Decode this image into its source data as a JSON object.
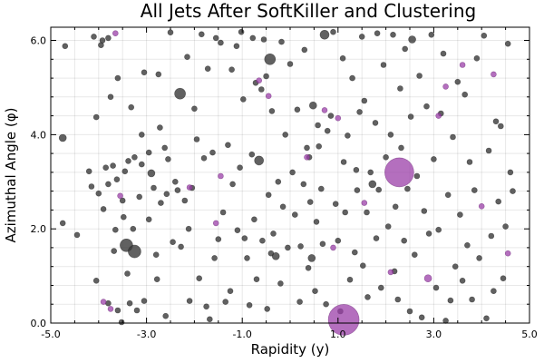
{
  "chart_data": {
    "type": "scatter",
    "title": "All Jets After SoftKiller and Clustering",
    "xlabel": "Rapidity (y)",
    "ylabel": "Azimuthal Angle (φ)",
    "xlim": [
      -5.0,
      5.0
    ],
    "ylim": [
      0.0,
      6.28
    ],
    "xticks": [
      -5.0,
      -3.0,
      -1.0,
      1.0,
      3.0,
      5.0
    ],
    "xtick_labels": [
      "-5.0",
      "-3.0",
      "-1.0",
      "1.0",
      "3.0",
      "5.0"
    ],
    "yticks": [
      0.0,
      2.0,
      4.0,
      6.0
    ],
    "ytick_labels": [
      "0.0",
      "2.0",
      "4.0",
      "6.0"
    ],
    "grid": true,
    "legend": "none",
    "colors": {
      "dark": "#3a3a3a",
      "purple": "#9b3fa8"
    },
    "series": [
      {
        "color_key": "dark",
        "points": [
          [
            -4.75,
            3.93,
            4
          ],
          [
            -4.75,
            2.12,
            3
          ],
          [
            -4.7,
            5.88,
            3
          ],
          [
            -4.45,
            1.87,
            3
          ],
          [
            -4.2,
            3.22,
            3
          ],
          [
            -4.15,
            2.9,
            3
          ],
          [
            -4.1,
            6.08,
            3
          ],
          [
            -4.05,
            4.37,
            3
          ],
          [
            -4.05,
            0.9,
            3
          ],
          [
            -4.0,
            2.75,
            3
          ],
          [
            -3.95,
            5.9,
            3
          ],
          [
            -3.92,
            6.0,
            3
          ],
          [
            -3.9,
            2.42,
            3
          ],
          [
            -3.85,
            3.3,
            3
          ],
          [
            -3.8,
            6.05,
            3
          ],
          [
            -3.8,
            2.95,
            3
          ],
          [
            -3.8,
            0.42,
            3
          ],
          [
            -3.75,
            4.8,
            3
          ],
          [
            -3.7,
            3.34,
            3
          ],
          [
            -3.68,
            1.53,
            3
          ],
          [
            -3.65,
            1.98,
            3
          ],
          [
            -3.62,
            3.05,
            3
          ],
          [
            -3.6,
            5.2,
            3
          ],
          [
            -3.6,
            0.27,
            3
          ],
          [
            -3.52,
            0.02,
            3
          ],
          [
            -3.5,
            2.6,
            3
          ],
          [
            -3.48,
            2.25,
            3
          ],
          [
            -3.45,
            3.22,
            3
          ],
          [
            -3.42,
            1.65,
            7
          ],
          [
            -3.4,
            1.05,
            3
          ],
          [
            -3.38,
            3.44,
            3
          ],
          [
            -3.35,
            0.42,
            3
          ],
          [
            -3.32,
            4.58,
            3
          ],
          [
            -3.28,
            2.0,
            3
          ],
          [
            -3.25,
            1.52,
            7
          ],
          [
            -3.25,
            3.52,
            3
          ],
          [
            -3.2,
            0.27,
            3
          ],
          [
            -3.15,
            2.68,
            3
          ],
          [
            -3.1,
            4.0,
            3
          ],
          [
            -3.1,
            3.37,
            3
          ],
          [
            -3.05,
            0.47,
            3
          ],
          [
            -3.05,
            5.32,
            3
          ],
          [
            -2.95,
            2.2,
            3
          ],
          [
            -2.95,
            3.62,
            3
          ],
          [
            -2.9,
            3.18,
            4
          ],
          [
            -2.85,
            2.87,
            3
          ],
          [
            -2.8,
            1.45,
            3
          ],
          [
            -2.78,
            0.93,
            3
          ],
          [
            -2.75,
            5.28,
            3
          ],
          [
            -2.72,
            4.15,
            3
          ],
          [
            -2.7,
            2.55,
            3
          ],
          [
            -2.62,
            3.72,
            3
          ],
          [
            -2.6,
            0.15,
            3
          ],
          [
            -2.58,
            2.74,
            3
          ],
          [
            -2.55,
            3.48,
            3
          ],
          [
            -2.5,
            6.17,
            3
          ],
          [
            -2.45,
            1.72,
            3
          ],
          [
            -2.4,
            3.0,
            3
          ],
          [
            -2.35,
            2.82,
            3
          ],
          [
            -2.3,
            4.87,
            6
          ],
          [
            -2.28,
            1.62,
            3
          ],
          [
            -2.2,
            2.6,
            3
          ],
          [
            -2.15,
            5.65,
            3
          ],
          [
            -2.12,
            2.0,
            3
          ],
          [
            -2.1,
            0.47,
            3
          ],
          [
            -2.05,
            2.87,
            3
          ],
          [
            -2.0,
            4.55,
            3
          ],
          [
            -1.95,
            3.9,
            3
          ],
          [
            -1.9,
            0.95,
            3
          ],
          [
            -1.85,
            6.13,
            3
          ],
          [
            -1.8,
            3.5,
            3
          ],
          [
            -1.75,
            0.35,
            3
          ],
          [
            -1.72,
            5.4,
            3
          ],
          [
            -1.68,
            0.08,
            3
          ],
          [
            -1.62,
            3.62,
            3
          ],
          [
            -1.58,
            1.38,
            3
          ],
          [
            -1.55,
            6.05,
            3
          ],
          [
            -1.5,
            1.78,
            3
          ],
          [
            -1.45,
            5.95,
            3
          ],
          [
            -1.4,
            2.35,
            3
          ],
          [
            -1.35,
            0.45,
            3
          ],
          [
            -1.3,
            3.78,
            3
          ],
          [
            -1.25,
            0.68,
            3
          ],
          [
            -1.22,
            5.38,
            3
          ],
          [
            -1.2,
            2.95,
            3
          ],
          [
            -1.12,
            5.88,
            3
          ],
          [
            -1.1,
            1.97,
            3
          ],
          [
            -1.05,
            3.3,
            3
          ],
          [
            -1.02,
            6.18,
            3
          ],
          [
            -0.98,
            4.75,
            3
          ],
          [
            -0.95,
            1.8,
            3
          ],
          [
            -0.9,
            1.38,
            3
          ],
          [
            -0.85,
            0.38,
            3
          ],
          [
            -0.8,
            3.58,
            3
          ],
          [
            -0.78,
            6.05,
            3
          ],
          [
            -0.75,
            2.2,
            3
          ],
          [
            -0.72,
            5.1,
            3
          ],
          [
            -0.7,
            0.93,
            3
          ],
          [
            -0.65,
            3.45,
            5
          ],
          [
            -0.6,
            4.96,
            3
          ],
          [
            -0.58,
            1.75,
            3
          ],
          [
            -0.55,
            6.02,
            3
          ],
          [
            -0.5,
            5.24,
            3
          ],
          [
            -0.48,
            0.3,
            3
          ],
          [
            -0.45,
            2.72,
            3
          ],
          [
            -0.42,
            5.6,
            6
          ],
          [
            -0.4,
            1.48,
            3
          ],
          [
            -0.38,
            4.5,
            3
          ],
          [
            -0.35,
            1.9,
            3
          ],
          [
            -0.3,
            1.42,
            4
          ],
          [
            -0.25,
            3.0,
            3
          ],
          [
            -0.2,
            0.84,
            3
          ],
          [
            -0.18,
            5.97,
            3
          ],
          [
            -0.15,
            2.47,
            3
          ],
          [
            -0.1,
            4.0,
            3
          ],
          [
            -0.05,
            1.6,
            3
          ],
          [
            0.0,
            5.5,
            3
          ],
          [
            0.05,
            3.2,
            3
          ],
          [
            0.1,
            2.3,
            3
          ],
          [
            0.15,
            4.53,
            3
          ],
          [
            0.2,
            0.45,
            3
          ],
          [
            0.22,
            1.63,
            3
          ],
          [
            0.28,
            2.95,
            3
          ],
          [
            0.3,
            5.8,
            3
          ],
          [
            0.35,
            3.72,
            3
          ],
          [
            0.38,
            1.17,
            3
          ],
          [
            0.4,
            3.52,
            3
          ],
          [
            0.42,
            2.57,
            3
          ],
          [
            0.45,
            1.38,
            4
          ],
          [
            0.48,
            4.62,
            4
          ],
          [
            0.52,
            0.68,
            3
          ],
          [
            0.55,
            2.15,
            3
          ],
          [
            0.58,
            4.2,
            3
          ],
          [
            0.6,
            3.75,
            3
          ],
          [
            0.65,
            2.85,
            3
          ],
          [
            0.68,
            1.68,
            3
          ],
          [
            0.72,
            6.12,
            5
          ],
          [
            0.75,
            0.4,
            3
          ],
          [
            0.78,
            4.08,
            3
          ],
          [
            0.85,
            4.4,
            3
          ],
          [
            0.9,
            6.18,
            3
          ],
          [
            0.95,
            2.53,
            3
          ],
          [
            1.0,
            1.75,
            3
          ],
          [
            1.05,
            0.25,
            3
          ],
          [
            1.1,
            5.62,
            3
          ],
          [
            1.12,
            3.42,
            3
          ],
          [
            1.15,
            2.35,
            3
          ],
          [
            1.2,
            3.98,
            3
          ],
          [
            1.25,
            0.92,
            3
          ],
          [
            1.3,
            5.2,
            3
          ],
          [
            1.35,
            1.5,
            3
          ],
          [
            1.38,
            3.25,
            3
          ],
          [
            1.4,
            2.82,
            3
          ],
          [
            1.45,
            4.48,
            3
          ],
          [
            1.5,
            6.08,
            3
          ],
          [
            1.52,
            1.22,
            3
          ],
          [
            1.55,
            4.72,
            3
          ],
          [
            1.6,
            2.35,
            3
          ],
          [
            1.62,
            0.55,
            3
          ],
          [
            1.68,
            3.2,
            3
          ],
          [
            1.72,
            2.95,
            4
          ],
          [
            1.78,
            4.25,
            3
          ],
          [
            1.8,
            1.8,
            3
          ],
          [
            1.82,
            6.15,
            3
          ],
          [
            1.85,
            2.83,
            3
          ],
          [
            1.9,
            0.75,
            3
          ],
          [
            1.95,
            5.48,
            3
          ],
          [
            2.0,
            3.52,
            3
          ],
          [
            2.05,
            2.05,
            3
          ],
          [
            2.1,
            4.0,
            3
          ],
          [
            2.15,
            6.12,
            3
          ],
          [
            2.18,
            1.1,
            3
          ],
          [
            2.2,
            2.47,
            3
          ],
          [
            2.25,
            0.5,
            3
          ],
          [
            2.3,
            4.98,
            3
          ],
          [
            2.32,
            3.72,
            3
          ],
          [
            2.38,
            1.75,
            3
          ],
          [
            2.4,
            5.82,
            3
          ],
          [
            2.45,
            2.85,
            3
          ],
          [
            2.5,
            0.25,
            3
          ],
          [
            2.52,
            4.38,
            3
          ],
          [
            2.55,
            6.02,
            4
          ],
          [
            2.6,
            1.45,
            3
          ],
          [
            2.65,
            3.12,
            3
          ],
          [
            2.7,
            5.25,
            3
          ],
          [
            2.75,
            0.12,
            3
          ],
          [
            2.8,
            2.38,
            3
          ],
          [
            2.85,
            4.6,
            3
          ],
          [
            2.9,
            1.9,
            3
          ],
          [
            2.95,
            6.12,
            3
          ],
          [
            3.0,
            3.48,
            3
          ],
          [
            3.05,
            0.75,
            3
          ],
          [
            3.1,
            1.98,
            3
          ],
          [
            3.15,
            4.45,
            3
          ],
          [
            3.2,
            5.72,
            3
          ],
          [
            3.25,
            0.05,
            3
          ],
          [
            3.3,
            2.72,
            3
          ],
          [
            3.35,
            0.48,
            3
          ],
          [
            3.4,
            3.95,
            3
          ],
          [
            3.45,
            1.2,
            3
          ],
          [
            3.5,
            5.12,
            3
          ],
          [
            3.55,
            2.3,
            3
          ],
          [
            3.6,
            0.9,
            3
          ],
          [
            3.65,
            4.85,
            3
          ],
          [
            3.7,
            1.65,
            3
          ],
          [
            3.75,
            3.42,
            3
          ],
          [
            3.8,
            0.5,
            3
          ],
          [
            3.85,
            2.82,
            3
          ],
          [
            3.9,
            5.62,
            3
          ],
          [
            3.95,
            1.38,
            3
          ],
          [
            4.05,
            6.1,
            3
          ],
          [
            4.1,
            0.1,
            3
          ],
          [
            4.15,
            3.66,
            3
          ],
          [
            4.2,
            1.85,
            3
          ],
          [
            4.25,
            0.68,
            3
          ],
          [
            4.3,
            4.28,
            3
          ],
          [
            4.35,
            2.58,
            3
          ],
          [
            4.4,
            4.18,
            3
          ],
          [
            4.45,
            0.95,
            3
          ],
          [
            4.5,
            2.05,
            3
          ],
          [
            4.55,
            5.93,
            3
          ],
          [
            4.6,
            3.2,
            3
          ],
          [
            4.65,
            2.8,
            3
          ]
        ]
      },
      {
        "color_key": "purple",
        "points": [
          [
            -3.9,
            0.45,
            3
          ],
          [
            -3.75,
            0.3,
            3
          ],
          [
            -3.65,
            6.15,
            3
          ],
          [
            -3.55,
            2.7,
            3
          ],
          [
            -2.1,
            2.88,
            3
          ],
          [
            -1.55,
            2.12,
            3
          ],
          [
            -1.45,
            3.12,
            3
          ],
          [
            -0.65,
            5.15,
            3
          ],
          [
            -0.45,
            4.82,
            3
          ],
          [
            0.35,
            3.52,
            3
          ],
          [
            0.72,
            4.52,
            3
          ],
          [
            0.9,
            1.6,
            3
          ],
          [
            1.0,
            4.35,
            3
          ],
          [
            1.12,
            0.07,
            17
          ],
          [
            1.55,
            2.55,
            3
          ],
          [
            2.1,
            1.08,
            3
          ],
          [
            2.28,
            3.2,
            16
          ],
          [
            2.88,
            0.95,
            4
          ],
          [
            3.1,
            4.4,
            3
          ],
          [
            3.25,
            5.02,
            3
          ],
          [
            3.6,
            5.48,
            3
          ],
          [
            4.0,
            2.48,
            3
          ],
          [
            4.25,
            5.28,
            3
          ],
          [
            4.55,
            1.48,
            3
          ]
        ]
      }
    ]
  }
}
